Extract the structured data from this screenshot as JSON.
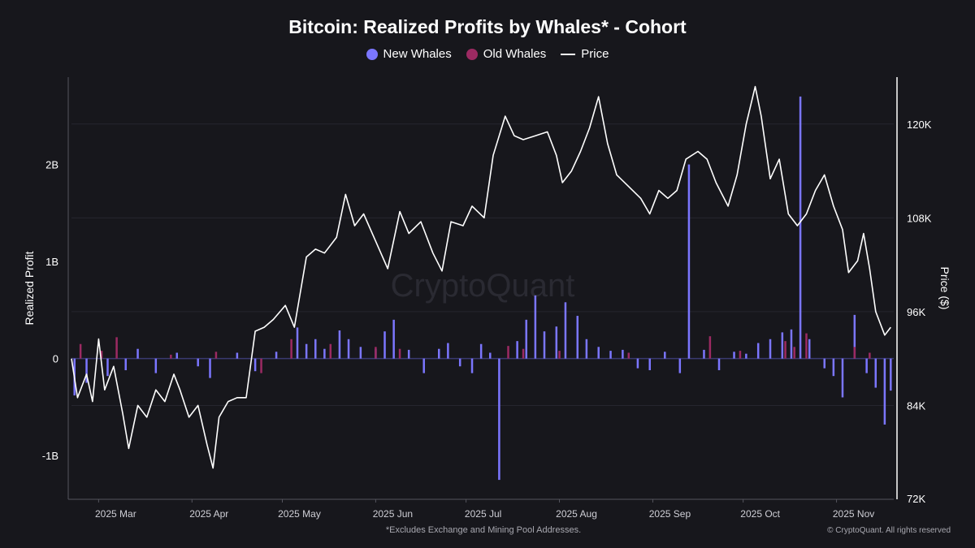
{
  "chart_data": {
    "type": "bar+line",
    "title": "Bitcoin: Realized Profits by Whales* - Cohort",
    "ylabel_left": "Realized Profit",
    "ylabel_right": "Price ($)",
    "left_axis": {
      "ylim": [
        -1450000000,
        2900000000
      ],
      "ticks": [
        -1000000000,
        0,
        1000000000,
        2000000000
      ],
      "tick_labels": [
        "-1B",
        "0",
        "1B",
        "2B"
      ]
    },
    "right_axis": {
      "ylim": [
        72000,
        126000
      ],
      "ticks": [
        72000,
        84000,
        96000,
        108000,
        120000
      ],
      "tick_labels": [
        "72K",
        "84K",
        "96K",
        "108K",
        "120K"
      ]
    },
    "x_axis": {
      "range": [
        "2025-02-20",
        "2025-11-20"
      ],
      "ticks": [
        "2025-03-01",
        "2025-04-01",
        "2025-05-01",
        "2025-06-01",
        "2025-07-01",
        "2025-08-01",
        "2025-09-01",
        "2025-10-01",
        "2025-11-01"
      ],
      "tick_labels": [
        "2025 Mar",
        "2025 Apr",
        "2025 May",
        "2025 Jun",
        "2025 Jul",
        "2025 Aug",
        "2025 Sep",
        "2025 Oct",
        "2025 Nov"
      ]
    },
    "grid": "horizontal",
    "legend_position": "top-center",
    "series": [
      {
        "name": "New Whales",
        "type": "bar",
        "color": "#7b76ff",
        "points": [
          [
            "2025-02-21",
            -380000000
          ],
          [
            "2025-02-25",
            -250000000
          ],
          [
            "2025-03-04",
            -180000000
          ],
          [
            "2025-03-10",
            -120000000
          ],
          [
            "2025-03-14",
            100000000
          ],
          [
            "2025-03-20",
            -150000000
          ],
          [
            "2025-03-27",
            60000000
          ],
          [
            "2025-04-03",
            -80000000
          ],
          [
            "2025-04-07",
            -200000000
          ],
          [
            "2025-04-16",
            60000000
          ],
          [
            "2025-04-22",
            -130000000
          ],
          [
            "2025-04-29",
            70000000
          ],
          [
            "2025-05-06",
            320000000
          ],
          [
            "2025-05-09",
            150000000
          ],
          [
            "2025-05-12",
            200000000
          ],
          [
            "2025-05-15",
            100000000
          ],
          [
            "2025-05-20",
            290000000
          ],
          [
            "2025-05-23",
            200000000
          ],
          [
            "2025-05-27",
            120000000
          ],
          [
            "2025-06-01",
            100000000
          ],
          [
            "2025-06-04",
            280000000
          ],
          [
            "2025-06-07",
            400000000
          ],
          [
            "2025-06-12",
            90000000
          ],
          [
            "2025-06-17",
            -150000000
          ],
          [
            "2025-06-22",
            100000000
          ],
          [
            "2025-06-25",
            160000000
          ],
          [
            "2025-06-29",
            -80000000
          ],
          [
            "2025-07-03",
            -150000000
          ],
          [
            "2025-07-06",
            150000000
          ],
          [
            "2025-07-09",
            60000000
          ],
          [
            "2025-07-12",
            -1250000000
          ],
          [
            "2025-07-18",
            180000000
          ],
          [
            "2025-07-21",
            400000000
          ],
          [
            "2025-07-24",
            650000000
          ],
          [
            "2025-07-27",
            280000000
          ],
          [
            "2025-07-31",
            330000000
          ],
          [
            "2025-08-03",
            580000000
          ],
          [
            "2025-08-07",
            440000000
          ],
          [
            "2025-08-10",
            200000000
          ],
          [
            "2025-08-14",
            120000000
          ],
          [
            "2025-08-18",
            80000000
          ],
          [
            "2025-08-22",
            90000000
          ],
          [
            "2025-08-27",
            -100000000
          ],
          [
            "2025-08-31",
            -120000000
          ],
          [
            "2025-09-05",
            70000000
          ],
          [
            "2025-09-10",
            -150000000
          ],
          [
            "2025-09-13",
            2000000000
          ],
          [
            "2025-09-18",
            90000000
          ],
          [
            "2025-09-23",
            -120000000
          ],
          [
            "2025-09-28",
            70000000
          ],
          [
            "2025-10-02",
            50000000
          ],
          [
            "2025-10-06",
            160000000
          ],
          [
            "2025-10-10",
            200000000
          ],
          [
            "2025-10-14",
            270000000
          ],
          [
            "2025-10-17",
            300000000
          ],
          [
            "2025-10-20",
            2700000000
          ],
          [
            "2025-10-23",
            200000000
          ],
          [
            "2025-10-28",
            -100000000
          ],
          [
            "2025-10-31",
            -180000000
          ],
          [
            "2025-11-03",
            -400000000
          ],
          [
            "2025-11-07",
            450000000
          ],
          [
            "2025-11-11",
            -150000000
          ],
          [
            "2025-11-14",
            -300000000
          ],
          [
            "2025-11-17",
            -680000000
          ],
          [
            "2025-11-19",
            -330000000
          ]
        ]
      },
      {
        "name": "Old Whales",
        "type": "bar",
        "color": "#9c2a62",
        "points": [
          [
            "2025-02-23",
            150000000
          ],
          [
            "2025-03-02",
            80000000
          ],
          [
            "2025-03-07",
            220000000
          ],
          [
            "2025-03-25",
            40000000
          ],
          [
            "2025-04-09",
            70000000
          ],
          [
            "2025-04-24",
            -150000000
          ],
          [
            "2025-05-04",
            200000000
          ],
          [
            "2025-05-17",
            150000000
          ],
          [
            "2025-06-01",
            120000000
          ],
          [
            "2025-06-09",
            100000000
          ],
          [
            "2025-07-15",
            130000000
          ],
          [
            "2025-07-20",
            100000000
          ],
          [
            "2025-08-01",
            80000000
          ],
          [
            "2025-08-24",
            60000000
          ],
          [
            "2025-09-20",
            230000000
          ],
          [
            "2025-09-30",
            80000000
          ],
          [
            "2025-10-15",
            180000000
          ],
          [
            "2025-10-18",
            120000000
          ],
          [
            "2025-10-22",
            260000000
          ],
          [
            "2025-11-07",
            120000000
          ],
          [
            "2025-11-12",
            60000000
          ]
        ]
      },
      {
        "name": "Price",
        "type": "line",
        "color": "#ffffff",
        "axis": "right",
        "points": [
          [
            "2025-02-20",
            90000
          ],
          [
            "2025-02-22",
            85000
          ],
          [
            "2025-02-25",
            88000
          ],
          [
            "2025-02-27",
            84500
          ],
          [
            "2025-03-01",
            92500
          ],
          [
            "2025-03-03",
            86000
          ],
          [
            "2025-03-06",
            89000
          ],
          [
            "2025-03-09",
            83000
          ],
          [
            "2025-03-11",
            78500
          ],
          [
            "2025-03-14",
            84000
          ],
          [
            "2025-03-17",
            82500
          ],
          [
            "2025-03-20",
            86000
          ],
          [
            "2025-03-23",
            84500
          ],
          [
            "2025-03-26",
            88000
          ],
          [
            "2025-03-28",
            86000
          ],
          [
            "2025-03-31",
            82500
          ],
          [
            "2025-04-03",
            84000
          ],
          [
            "2025-04-06",
            79000
          ],
          [
            "2025-04-08",
            76000
          ],
          [
            "2025-04-10",
            82500
          ],
          [
            "2025-04-13",
            84500
          ],
          [
            "2025-04-16",
            85000
          ],
          [
            "2025-04-19",
            85000
          ],
          [
            "2025-04-22",
            93500
          ],
          [
            "2025-04-25",
            94000
          ],
          [
            "2025-04-28",
            95000
          ],
          [
            "2025-05-02",
            96800
          ],
          [
            "2025-05-05",
            94000
          ],
          [
            "2025-05-09",
            103000
          ],
          [
            "2025-05-12",
            104000
          ],
          [
            "2025-05-15",
            103500
          ],
          [
            "2025-05-19",
            105500
          ],
          [
            "2025-05-22",
            111000
          ],
          [
            "2025-05-25",
            107000
          ],
          [
            "2025-05-28",
            108500
          ],
          [
            "2025-06-01",
            105000
          ],
          [
            "2025-06-05",
            101500
          ],
          [
            "2025-06-09",
            108800
          ],
          [
            "2025-06-12",
            106000
          ],
          [
            "2025-06-16",
            107500
          ],
          [
            "2025-06-20",
            103500
          ],
          [
            "2025-06-23",
            101200
          ],
          [
            "2025-06-26",
            107500
          ],
          [
            "2025-06-30",
            107000
          ],
          [
            "2025-07-03",
            109500
          ],
          [
            "2025-07-07",
            108000
          ],
          [
            "2025-07-10",
            116000
          ],
          [
            "2025-07-14",
            121000
          ],
          [
            "2025-07-17",
            118500
          ],
          [
            "2025-07-20",
            118000
          ],
          [
            "2025-07-24",
            118500
          ],
          [
            "2025-07-28",
            119000
          ],
          [
            "2025-07-31",
            116000
          ],
          [
            "2025-08-02",
            112500
          ],
          [
            "2025-08-05",
            114000
          ],
          [
            "2025-08-08",
            116500
          ],
          [
            "2025-08-11",
            119500
          ],
          [
            "2025-08-14",
            123500
          ],
          [
            "2025-08-17",
            117500
          ],
          [
            "2025-08-20",
            113500
          ],
          [
            "2025-08-24",
            112000
          ],
          [
            "2025-08-28",
            110500
          ],
          [
            "2025-08-31",
            108500
          ],
          [
            "2025-09-03",
            111500
          ],
          [
            "2025-09-06",
            110500
          ],
          [
            "2025-09-09",
            111500
          ],
          [
            "2025-09-12",
            115500
          ],
          [
            "2025-09-16",
            116500
          ],
          [
            "2025-09-19",
            115500
          ],
          [
            "2025-09-22",
            112500
          ],
          [
            "2025-09-26",
            109500
          ],
          [
            "2025-09-29",
            113500
          ],
          [
            "2025-10-02",
            120000
          ],
          [
            "2025-10-05",
            124800
          ],
          [
            "2025-10-07",
            121000
          ],
          [
            "2025-10-10",
            113000
          ],
          [
            "2025-10-13",
            115500
          ],
          [
            "2025-10-16",
            108500
          ],
          [
            "2025-10-19",
            107000
          ],
          [
            "2025-10-22",
            108500
          ],
          [
            "2025-10-25",
            111500
          ],
          [
            "2025-10-28",
            113500
          ],
          [
            "2025-10-31",
            109500
          ],
          [
            "2025-11-03",
            106500
          ],
          [
            "2025-11-05",
            101000
          ],
          [
            "2025-11-08",
            102500
          ],
          [
            "2025-11-10",
            106000
          ],
          [
            "2025-11-12",
            101500
          ],
          [
            "2025-11-14",
            96000
          ],
          [
            "2025-11-17",
            93000
          ],
          [
            "2025-11-19",
            94000
          ]
        ]
      }
    ]
  },
  "legend": {
    "new_whales": "New Whales",
    "old_whales": "Old Whales",
    "price": "Price"
  },
  "footnote": "*Excludes Exchange and Mining Pool Addresses.",
  "watermark": "CryptoQuant",
  "copyright": "© CryptoQuant. All rights reserved",
  "colors": {
    "background": "#17171c",
    "new_whales": "#7b76ff",
    "old_whales": "#9c2a62",
    "price": "#ffffff"
  }
}
